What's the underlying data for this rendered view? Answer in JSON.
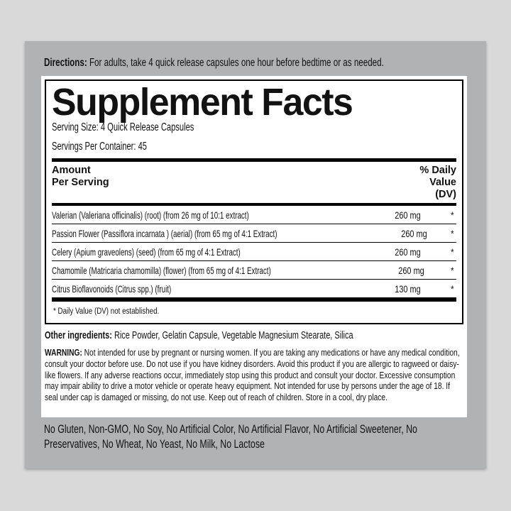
{
  "colors": {
    "page_background": "#d9d9d9",
    "label_background": "#b0b2b4",
    "card_background": "#ffffff",
    "text": "#121212"
  },
  "directions": {
    "label": "Directions:",
    "text": "For adults, take 4 quick release capsules one hour before bedtime or as needed."
  },
  "facts": {
    "title": "Supplement Facts",
    "serving_size": "Serving Size: 4 Quick Release Capsules",
    "servings_per_container": "Servings Per Container: 45",
    "header": {
      "amount": "Amount\nPer Serving",
      "daily_value": "% Daily\nValue\n(DV)"
    },
    "rows": [
      {
        "name": "Valerian (Valeriana officinalis) (root) (from 26 mg of 10:1 extract)",
        "amount": "260 mg",
        "dv": "*"
      },
      {
        "name": "Passion Flower (Passiflora incarnata ) (aerial) (from 65 mg of 4:1 Extract)",
        "amount": "260 mg",
        "dv": "*"
      },
      {
        "name": "Celery (Apium graveolens) (seed) (from 65 mg of 4:1 Extract)",
        "amount": "260 mg",
        "dv": "*"
      },
      {
        "name": "Chamomile (Matricaria chamomilla) (flower) (from 65 mg of 4:1 Extract)",
        "amount": "260 mg",
        "dv": "*"
      },
      {
        "name": "Citrus Bioflavonoids (Citrus spp.) (fruit)",
        "amount": "130 mg",
        "dv": "*"
      }
    ],
    "footnote": "* Daily Value (DV) not established."
  },
  "other_ingredients": {
    "label": "Other ingredients:",
    "text": "Rice Powder, Gelatin Capsule, Vegetable Magnesium Stearate, Silica"
  },
  "warning": {
    "label": "WARNING:",
    "text": "Not intended for use by pregnant or nursing women. If you are taking any medications or have any medical condition, consult your doctor before use. Do not use if you have kidney disorders. Avoid this product if you are allergic to ragweed or daisy-like flowers. If any adverse reactions occur, immediately stop using this product and consult your doctor. Excessive consumption may impair ability to drive a motor vehicle or operate heavy equipment. Not intended for use by persons under the age of 18. If seal under cap is damaged or missing, do not use. Keep out of reach of children. Store in a cool, dry place."
  },
  "claims": "No Gluten, Non-GMO, No Soy, No Artificial Color, No Artificial Flavor, No Artificial Sweetener, No Preservatives, No Wheat, No Yeast, No Milk, No Lactose"
}
